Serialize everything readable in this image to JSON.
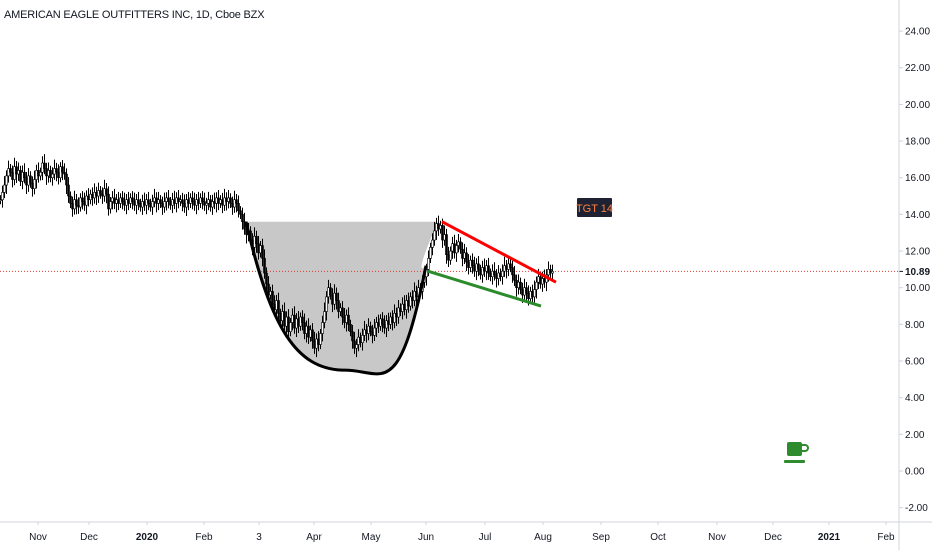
{
  "header": {
    "title": "AMERICAN EAGLE OUTFITTERS INC, 1D, Cboe BZX"
  },
  "chart_data": {
    "type": "candlestick",
    "title": "AMERICAN EAGLE OUTFITTERS INC, 1D, Cboe BZX",
    "ylim": [
      -2.8,
      25.2
    ],
    "y_ticks": [
      "-2.00",
      "0.00",
      "2.00",
      "4.00",
      "6.00",
      "8.00",
      "10.00",
      "12.00",
      "14.00",
      "16.00",
      "18.00",
      "20.00",
      "22.00",
      "24.00"
    ],
    "y_tick_values": [
      -2,
      0,
      2,
      4,
      6,
      8,
      10,
      12,
      14,
      16,
      18,
      20,
      22,
      24
    ],
    "x_ticks": [
      {
        "label": "Nov",
        "bold": false
      },
      {
        "label": "Dec",
        "bold": false
      },
      {
        "label": "2020",
        "bold": true
      },
      {
        "label": "Feb",
        "bold": false
      },
      {
        "label": "3",
        "bold": false
      },
      {
        "label": "Apr",
        "bold": false
      },
      {
        "label": "May",
        "bold": false
      },
      {
        "label": "Jun",
        "bold": false
      },
      {
        "label": "Jul",
        "bold": false
      },
      {
        "label": "Aug",
        "bold": false
      },
      {
        "label": "Sep",
        "bold": false
      },
      {
        "label": "Oct",
        "bold": false
      },
      {
        "label": "Nov",
        "bold": false
      },
      {
        "label": "Dec",
        "bold": false
      },
      {
        "label": "2021",
        "bold": true
      },
      {
        "label": "Feb",
        "bold": false
      }
    ],
    "last_price": 10.89,
    "last_price_label": "10.89",
    "series": [
      {
        "type": "candles",
        "points": [
          [
            0,
            14.8
          ],
          [
            2,
            15.2
          ],
          [
            4,
            15.6
          ],
          [
            6,
            16.1
          ],
          [
            8,
            16.5
          ],
          [
            10,
            16.3
          ],
          [
            12,
            15.9
          ],
          [
            14,
            16.6
          ],
          [
            16,
            16.2
          ],
          [
            18,
            16.4
          ],
          [
            20,
            15.8
          ],
          [
            22,
            16.3
          ],
          [
            24,
            16.0
          ],
          [
            26,
            15.6
          ],
          [
            28,
            16.1
          ],
          [
            30,
            15.7
          ],
          [
            32,
            15.4
          ],
          [
            34,
            15.9
          ],
          [
            36,
            16.4
          ],
          [
            38,
            16.1
          ],
          [
            40,
            16.3
          ],
          [
            42,
            16.8
          ],
          [
            44,
            16.5
          ],
          [
            46,
            16.1
          ],
          [
            48,
            16.4
          ],
          [
            50,
            16.0
          ],
          [
            52,
            16.2
          ],
          [
            54,
            16.5
          ],
          [
            56,
            16.3
          ],
          [
            58,
            16.0
          ],
          [
            60,
            16.6
          ],
          [
            62,
            16.3
          ],
          [
            64,
            16.2
          ],
          [
            66,
            15.6
          ],
          [
            68,
            15.0
          ],
          [
            70,
            14.6
          ],
          [
            72,
            14.3
          ],
          [
            74,
            14.8
          ],
          [
            76,
            14.5
          ],
          [
            78,
            14.4
          ],
          [
            80,
            14.9
          ],
          [
            82,
            14.7
          ],
          [
            84,
            14.5
          ],
          [
            86,
            15.0
          ],
          [
            88,
            14.8
          ],
          [
            90,
            15.1
          ],
          [
            92,
            14.9
          ],
          [
            94,
            15.2
          ],
          [
            96,
            15.0
          ],
          [
            98,
            15.3
          ],
          [
            100,
            15.1
          ],
          [
            102,
            15.0
          ],
          [
            104,
            15.4
          ],
          [
            106,
            15.1
          ],
          [
            108,
            14.3
          ],
          [
            110,
            14.7
          ],
          [
            112,
            14.9
          ],
          [
            114,
            14.6
          ],
          [
            116,
            14.8
          ],
          [
            118,
            14.6
          ],
          [
            120,
            14.9
          ],
          [
            122,
            14.7
          ],
          [
            124,
            14.5
          ],
          [
            126,
            14.8
          ],
          [
            128,
            14.6
          ],
          [
            130,
            14.9
          ],
          [
            132,
            14.7
          ],
          [
            134,
            14.5
          ],
          [
            136,
            14.8
          ],
          [
            138,
            14.6
          ],
          [
            140,
            14.4
          ],
          [
            142,
            14.7
          ],
          [
            144,
            14.5
          ],
          [
            146,
            14.8
          ],
          [
            148,
            14.6
          ],
          [
            150,
            14.4
          ],
          [
            152,
            14.7
          ],
          [
            154,
            14.9
          ],
          [
            156,
            14.6
          ],
          [
            158,
            14.8
          ],
          [
            160,
            14.6
          ],
          [
            162,
            14.4
          ],
          [
            164,
            14.7
          ],
          [
            166,
            14.9
          ],
          [
            168,
            14.7
          ],
          [
            170,
            14.5
          ],
          [
            172,
            14.8
          ],
          [
            174,
            14.6
          ],
          [
            176,
            14.9
          ],
          [
            178,
            14.7
          ],
          [
            180,
            14.8
          ],
          [
            182,
            14.6
          ],
          [
            184,
            14.4
          ],
          [
            186,
            14.8
          ],
          [
            188,
            14.6
          ],
          [
            190,
            14.9
          ],
          [
            192,
            14.7
          ],
          [
            194,
            14.5
          ],
          [
            196,
            14.8
          ],
          [
            198,
            14.6
          ],
          [
            200,
            14.9
          ],
          [
            202,
            14.7
          ],
          [
            204,
            14.5
          ],
          [
            206,
            14.6
          ],
          [
            208,
            14.8
          ],
          [
            210,
            14.4
          ],
          [
            212,
            14.7
          ],
          [
            214,
            14.6
          ],
          [
            216,
            14.9
          ],
          [
            218,
            14.6
          ],
          [
            220,
            14.8
          ],
          [
            222,
            14.5
          ],
          [
            224,
            14.9
          ],
          [
            226,
            14.7
          ],
          [
            228,
            14.9
          ],
          [
            230,
            14.6
          ],
          [
            232,
            14.4
          ],
          [
            234,
            14.8
          ],
          [
            236,
            14.6
          ],
          [
            238,
            14.2
          ],
          [
            240,
            14.0
          ],
          [
            242,
            13.6
          ],
          [
            244,
            13.2
          ],
          [
            246,
            12.9
          ],
          [
            248,
            13.1
          ],
          [
            250,
            12.6
          ],
          [
            252,
            12.2
          ],
          [
            254,
            12.8
          ],
          [
            256,
            12.4
          ],
          [
            258,
            11.9
          ],
          [
            260,
            12.3
          ],
          [
            262,
            11.6
          ],
          [
            264,
            10.8
          ],
          [
            266,
            10.2
          ],
          [
            268,
            9.6
          ],
          [
            270,
            9.8
          ],
          [
            272,
            9.1
          ],
          [
            274,
            8.8
          ],
          [
            276,
            9.3
          ],
          [
            278,
            8.6
          ],
          [
            280,
            8.2
          ],
          [
            282,
            8.7
          ],
          [
            284,
            7.9
          ],
          [
            286,
            8.4
          ],
          [
            288,
            7.6
          ],
          [
            290,
            8.1
          ],
          [
            292,
            8.5
          ],
          [
            294,
            7.8
          ],
          [
            296,
            8.3
          ],
          [
            298,
            7.9
          ],
          [
            300,
            8.4
          ],
          [
            302,
            8.1
          ],
          [
            304,
            7.5
          ],
          [
            306,
            7.9
          ],
          [
            308,
            7.3
          ],
          [
            310,
            7.7
          ],
          [
            312,
            7.1
          ],
          [
            314,
            6.7
          ],
          [
            316,
            7.2
          ],
          [
            318,
            6.9
          ],
          [
            320,
            7.5
          ],
          [
            322,
            8.1
          ],
          [
            324,
            8.7
          ],
          [
            326,
            9.5
          ],
          [
            328,
            10.0
          ],
          [
            330,
            9.6
          ],
          [
            332,
            9.1
          ],
          [
            334,
            9.7
          ],
          [
            336,
            9.3
          ],
          [
            338,
            8.7
          ],
          [
            340,
            8.9
          ],
          [
            342,
            8.4
          ],
          [
            344,
            8.1
          ],
          [
            346,
            8.5
          ],
          [
            348,
            8.0
          ],
          [
            350,
            7.6
          ],
          [
            352,
            7.1
          ],
          [
            354,
            6.7
          ],
          [
            356,
            6.9
          ],
          [
            358,
            7.3
          ],
          [
            360,
            7.0
          ],
          [
            362,
            7.4
          ],
          [
            364,
            7.7
          ],
          [
            366,
            7.5
          ],
          [
            368,
            7.9
          ],
          [
            370,
            7.6
          ],
          [
            372,
            7.4
          ],
          [
            374,
            7.8
          ],
          [
            376,
            8.1
          ],
          [
            378,
            7.9
          ],
          [
            380,
            8.3
          ],
          [
            382,
            8.0
          ],
          [
            384,
            7.8
          ],
          [
            386,
            8.2
          ],
          [
            388,
            8.0
          ],
          [
            390,
            8.4
          ],
          [
            392,
            8.1
          ],
          [
            394,
            8.6
          ],
          [
            396,
            8.4
          ],
          [
            398,
            8.9
          ],
          [
            400,
            8.7
          ],
          [
            402,
            9.1
          ],
          [
            404,
            8.8
          ],
          [
            406,
            9.3
          ],
          [
            408,
            9.0
          ],
          [
            410,
            9.5
          ],
          [
            412,
            9.3
          ],
          [
            414,
            9.8
          ],
          [
            416,
            9.5
          ],
          [
            418,
            10.0
          ],
          [
            420,
            9.8
          ],
          [
            422,
            10.3
          ],
          [
            424,
            10.6
          ],
          [
            426,
            11.0
          ],
          [
            428,
            11.6
          ],
          [
            430,
            12.2
          ],
          [
            432,
            12.6
          ],
          [
            434,
            13.1
          ],
          [
            436,
            13.5
          ],
          [
            438,
            13.2
          ],
          [
            440,
            13.4
          ],
          [
            442,
            12.6
          ],
          [
            444,
            12.9
          ],
          [
            446,
            11.8
          ],
          [
            448,
            11.5
          ],
          [
            450,
            12.0
          ],
          [
            452,
            12.4
          ],
          [
            454,
            11.9
          ],
          [
            456,
            12.3
          ],
          [
            458,
            12.5
          ],
          [
            460,
            12.1
          ],
          [
            462,
            11.6
          ],
          [
            464,
            11.9
          ],
          [
            466,
            11.4
          ],
          [
            468,
            11.1
          ],
          [
            470,
            11.5
          ],
          [
            472,
            11.2
          ],
          [
            474,
            10.9
          ],
          [
            476,
            11.3
          ],
          [
            478,
            11.0
          ],
          [
            480,
            10.7
          ],
          [
            482,
            11.1
          ],
          [
            484,
            10.9
          ],
          [
            486,
            11.2
          ],
          [
            488,
            10.8
          ],
          [
            490,
            10.6
          ],
          [
            492,
            10.9
          ],
          [
            494,
            10.7
          ],
          [
            496,
            10.5
          ],
          [
            498,
            10.8
          ],
          [
            500,
            10.6
          ],
          [
            502,
            10.9
          ],
          [
            504,
            11.2
          ],
          [
            506,
            11.0
          ],
          [
            508,
            11.3
          ],
          [
            510,
            11.1
          ],
          [
            512,
            10.7
          ],
          [
            514,
            10.4
          ],
          [
            516,
            10.0
          ],
          [
            518,
            10.3
          ],
          [
            520,
            9.9
          ],
          [
            522,
            9.6
          ],
          [
            524,
            10.0
          ],
          [
            526,
            9.7
          ],
          [
            528,
            9.4
          ],
          [
            530,
            9.8
          ],
          [
            532,
            9.5
          ],
          [
            534,
            9.9
          ],
          [
            536,
            10.3
          ],
          [
            538,
            10.6
          ],
          [
            540,
            10.2
          ],
          [
            542,
            10.5
          ],
          [
            544,
            10.3
          ],
          [
            546,
            10.7
          ],
          [
            548,
            11.0
          ],
          [
            550,
            10.8
          ],
          [
            552,
            10.89
          ]
        ]
      }
    ],
    "annotations": {
      "cup_fill_color": "#c8c8c8",
      "cup_rim_price": 13.6,
      "cup_bottom_price": 5.5,
      "channel_upper": {
        "color": "#ff0000",
        "start_price": 13.6,
        "end_price": 10.3
      },
      "channel_lower": {
        "color": "#2a8c2a",
        "start_price": 10.9,
        "end_price": 9.0
      },
      "target_label": "TGT 14",
      "target_bg": "#1e2232",
      "target_fg": "#ff8040"
    },
    "price_line_color": "#e53935",
    "logo_icon": "coffee-cup-icon",
    "logo_color": "#2e8b2e"
  }
}
